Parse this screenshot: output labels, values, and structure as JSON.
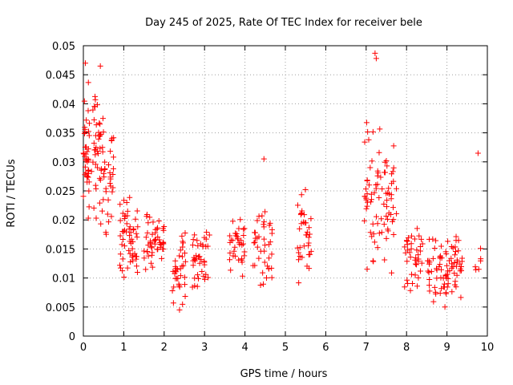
{
  "chart_data": {
    "type": "scatter",
    "title": "Day 245 of 2025, Rate Of TEC Index for receiver bele",
    "xlabel": "GPS time / hours",
    "ylabel": "ROTI / TECUs",
    "xlim": [
      0,
      10
    ],
    "ylim": [
      0,
      0.05
    ],
    "xticks": [
      "0",
      "1",
      "2",
      "3",
      "4",
      "5",
      "6",
      "7",
      "8",
      "9",
      "10"
    ],
    "yticks": [
      "0",
      "0.005",
      "0.01",
      "0.015",
      "0.02",
      "0.025",
      "0.03",
      "0.035",
      "0.04",
      "0.045",
      "0.05"
    ],
    "grid": true,
    "marker": "+",
    "color": "#ff0000",
    "clusters": [
      {
        "x0": 0.0,
        "x1": 0.15,
        "y0": 0.015,
        "y1": 0.047,
        "n": 40
      },
      {
        "x0": 0.2,
        "x1": 0.5,
        "y0": 0.017,
        "y1": 0.046,
        "n": 45
      },
      {
        "x0": 0.5,
        "x1": 0.75,
        "y0": 0.015,
        "y1": 0.039,
        "n": 30
      },
      {
        "x0": 0.9,
        "x1": 1.15,
        "y0": 0.009,
        "y1": 0.028,
        "n": 30
      },
      {
        "x0": 1.15,
        "x1": 1.35,
        "y0": 0.01,
        "y1": 0.022,
        "n": 25
      },
      {
        "x0": 1.5,
        "x1": 1.75,
        "y0": 0.009,
        "y1": 0.023,
        "n": 25
      },
      {
        "x0": 1.75,
        "x1": 2.0,
        "y0": 0.012,
        "y1": 0.02,
        "n": 25
      },
      {
        "x0": 2.2,
        "x1": 2.55,
        "y0": 0.004,
        "y1": 0.02,
        "n": 35
      },
      {
        "x0": 2.7,
        "x1": 3.15,
        "y0": 0.008,
        "y1": 0.019,
        "n": 40
      },
      {
        "x0": 3.6,
        "x1": 4.0,
        "y0": 0.01,
        "y1": 0.021,
        "n": 35
      },
      {
        "x0": 4.2,
        "x1": 4.7,
        "y0": 0.007,
        "y1": 0.024,
        "n": 40
      },
      {
        "x0": 5.3,
        "x1": 5.65,
        "y0": 0.008,
        "y1": 0.027,
        "n": 35
      },
      {
        "x0": 6.95,
        "x1": 7.35,
        "y0": 0.01,
        "y1": 0.04,
        "n": 45
      },
      {
        "x0": 7.35,
        "x1": 7.75,
        "y0": 0.009,
        "y1": 0.034,
        "n": 40
      },
      {
        "x0": 7.95,
        "x1": 8.4,
        "y0": 0.007,
        "y1": 0.022,
        "n": 40
      },
      {
        "x0": 8.5,
        "x1": 9.0,
        "y0": 0.005,
        "y1": 0.018,
        "n": 45
      },
      {
        "x0": 9.0,
        "x1": 9.4,
        "y0": 0.006,
        "y1": 0.018,
        "n": 40
      },
      {
        "x0": 9.7,
        "x1": 9.85,
        "y0": 0.009,
        "y1": 0.016,
        "n": 6
      }
    ],
    "extra_points": [
      {
        "x": 7.22,
        "y": 0.0487
      },
      {
        "x": 7.25,
        "y": 0.0478
      },
      {
        "x": 0.42,
        "y": 0.0465
      },
      {
        "x": 0.05,
        "y": 0.047
      },
      {
        "x": 9.77,
        "y": 0.0315
      },
      {
        "x": 4.47,
        "y": 0.0305
      },
      {
        "x": 2.38,
        "y": 0.0045
      },
      {
        "x": 8.95,
        "y": 0.005
      }
    ]
  }
}
